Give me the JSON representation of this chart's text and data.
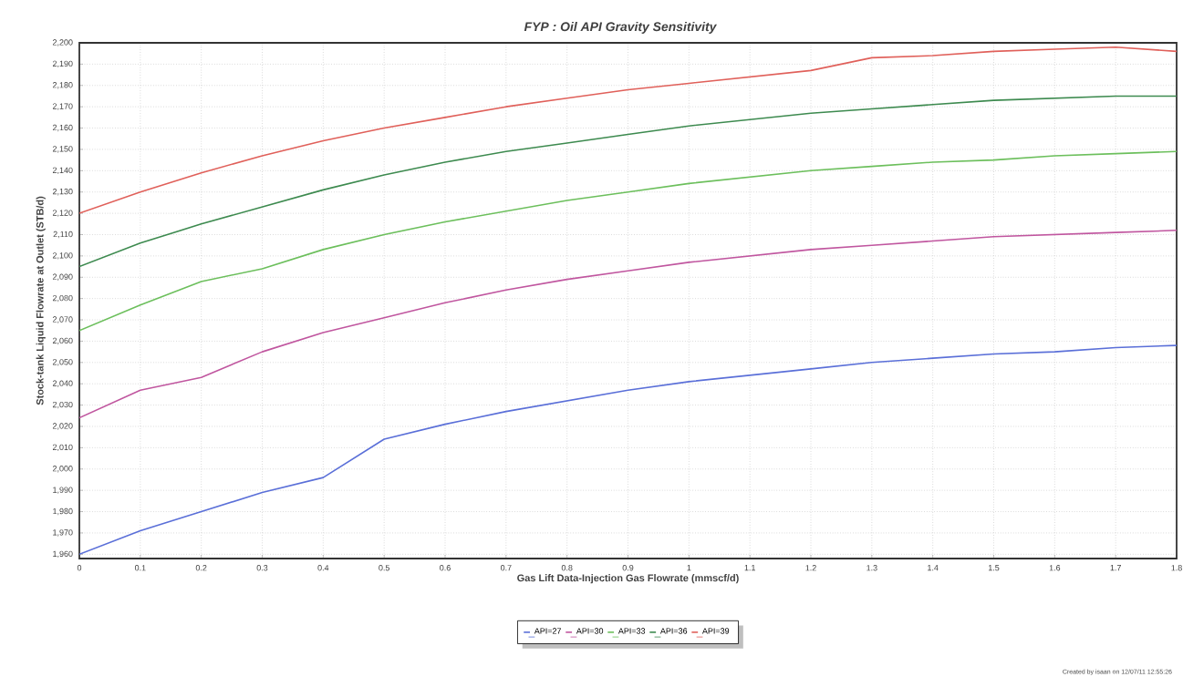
{
  "chart_data": {
    "type": "line",
    "title": "FYP : Oil API Gravity Sensitivity",
    "xlabel": "Gas Lift Data-Injection Gas Flowrate (mmscf/d)",
    "ylabel": "Stock-tank Liquid Flowrate at Outlet (STB/d)",
    "x": [
      0,
      0.1,
      0.2,
      0.3,
      0.4,
      0.5,
      0.6,
      0.7,
      0.8,
      0.9,
      1,
      1.1,
      1.2,
      1.3,
      1.4,
      1.5,
      1.6,
      1.7,
      1.8
    ],
    "series": [
      {
        "name": "API=27",
        "color": "#5a6fd8",
        "values": [
          1960,
          1971,
          1980,
          1989,
          1996,
          2014,
          2021,
          2027,
          2032,
          2037,
          2041,
          2044,
          2047,
          2050,
          2052,
          2054,
          2055,
          2057,
          2058
        ]
      },
      {
        "name": "API=30",
        "color": "#c0569f",
        "values": [
          2024,
          2037,
          2043,
          2055,
          2064,
          2071,
          2078,
          2084,
          2089,
          2093,
          2097,
          2100,
          2103,
          2105,
          2107,
          2109,
          2110,
          2111,
          2112
        ]
      },
      {
        "name": "API=33",
        "color": "#6cbf5c",
        "values": [
          2065,
          2077,
          2088,
          2094,
          2103,
          2110,
          2116,
          2121,
          2126,
          2130,
          2134,
          2137,
          2140,
          2142,
          2144,
          2145,
          2147,
          2148,
          2149
        ]
      },
      {
        "name": "API=36",
        "color": "#3d8a4f",
        "values": [
          2095,
          2106,
          2115,
          2123,
          2131,
          2138,
          2144,
          2149,
          2153,
          2157,
          2161,
          2164,
          2167,
          2169,
          2171,
          2173,
          2174,
          2175,
          2175
        ]
      },
      {
        "name": "API=39",
        "color": "#e0605a",
        "values": [
          2120,
          2130,
          2139,
          2147,
          2154,
          2160,
          2165,
          2170,
          2174,
          2178,
          2181,
          2184,
          2187,
          2193,
          2194,
          2196,
          2197,
          2198,
          2196
        ]
      }
    ],
    "xlim": [
      0,
      1.8
    ],
    "ylim": [
      1958,
      2200
    ],
    "xticks": [
      0,
      0.1,
      0.2,
      0.3,
      0.4,
      0.5,
      0.6,
      0.7,
      0.8,
      0.9,
      1,
      1.1,
      1.2,
      1.3,
      1.4,
      1.5,
      1.6,
      1.7,
      1.8
    ],
    "yticks": [
      {
        "value": 1960,
        "label": "1,960"
      },
      {
        "value": 1970,
        "label": "1,970"
      },
      {
        "value": 1980,
        "label": "1,980"
      },
      {
        "value": 1990,
        "label": "1,990"
      },
      {
        "value": 2000,
        "label": "2,000"
      },
      {
        "value": 2010,
        "label": "2,010"
      },
      {
        "value": 2020,
        "label": "2,020"
      },
      {
        "value": 2030,
        "label": "2,030"
      },
      {
        "value": 2040,
        "label": "2,040"
      },
      {
        "value": 2050,
        "label": "2,050"
      },
      {
        "value": 2060,
        "label": "2,060"
      },
      {
        "value": 2070,
        "label": "2,070"
      },
      {
        "value": 2080,
        "label": "2,080"
      },
      {
        "value": 2090,
        "label": "2,090"
      },
      {
        "value": 2100,
        "label": "2,100"
      },
      {
        "value": 2110,
        "label": "2,110"
      },
      {
        "value": 2120,
        "label": "2,120"
      },
      {
        "value": 2130,
        "label": "2,130"
      },
      {
        "value": 2140,
        "label": "2,140"
      },
      {
        "value": 2150,
        "label": "2,150"
      },
      {
        "value": 2160,
        "label": "2,160"
      },
      {
        "value": 2170,
        "label": "2,170"
      },
      {
        "value": 2180,
        "label": "2,180"
      },
      {
        "value": 2190,
        "label": "2,190"
      },
      {
        "value": 2200,
        "label": "2,200"
      }
    ],
    "grid": true,
    "legend": "bottom",
    "marker": "none",
    "line_style": "solid",
    "annotations": [
      "Created by isaan on 12/07/11 12:55:26"
    ]
  }
}
